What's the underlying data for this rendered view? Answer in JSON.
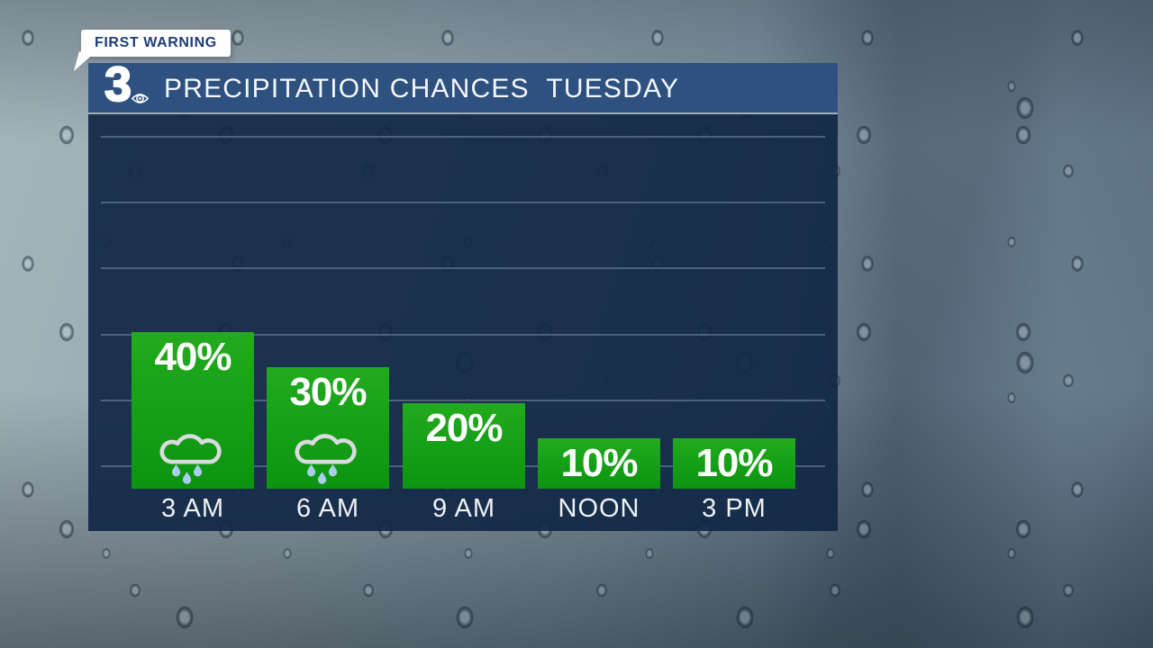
{
  "badge": {
    "label": "FIRST WARNING"
  },
  "header": {
    "logo_text": "3",
    "logo_icon": "cbs-eye-icon",
    "title": "PRECIPITATION CHANCES  TUESDAY"
  },
  "chart_data": {
    "type": "bar",
    "title": "PRECIPITATION CHANCES TUESDAY",
    "categories": [
      "3 AM",
      "6 AM",
      "9 AM",
      "NOON",
      "3 PM"
    ],
    "values": [
      40,
      30,
      20,
      10,
      10
    ],
    "value_labels": [
      "40%",
      "30%",
      "20%",
      "10%",
      "10%"
    ],
    "bar_icons": [
      "rain-cloud-icon",
      "rain-cloud-icon",
      null,
      null,
      null
    ],
    "unit": "%",
    "xlabel": "",
    "ylabel": "",
    "ylim": [
      0,
      100
    ],
    "grid": true,
    "gridline_orientation": "horizontal",
    "legend": false
  },
  "colors": {
    "header_blue": "#2e5180",
    "panel_navy": "#112846",
    "bar_green_top": "#24aa1e",
    "bar_green_bottom": "#0c9410",
    "badge_bg": "#ffffff",
    "badge_text_blue": "#1d3e78",
    "raindrop_blue": "#a9cdeb",
    "cloud_gray": "#d9dcde",
    "text_white": "#ffffff"
  }
}
